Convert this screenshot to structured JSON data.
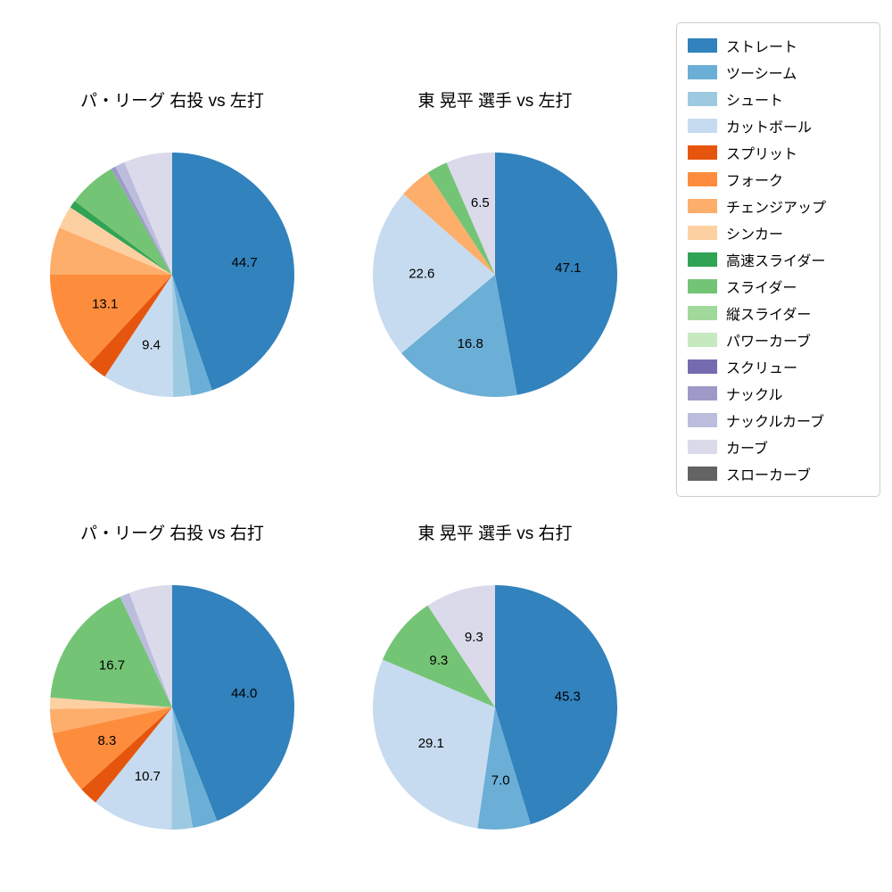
{
  "page": {
    "background": "#ffffff"
  },
  "legend": {
    "items": [
      {
        "label": "ストレート",
        "color": "#3182bd"
      },
      {
        "label": "ツーシーム",
        "color": "#6baed6"
      },
      {
        "label": "シュート",
        "color": "#9ecae1"
      },
      {
        "label": "カットボール",
        "color": "#c6dbef"
      },
      {
        "label": "スプリット",
        "color": "#e6550d"
      },
      {
        "label": "フォーク",
        "color": "#fd8d3c"
      },
      {
        "label": "チェンジアップ",
        "color": "#fdae6b"
      },
      {
        "label": "シンカー",
        "color": "#fdd0a2"
      },
      {
        "label": "高速スライダー",
        "color": "#31a354"
      },
      {
        "label": "スライダー",
        "color": "#74c476"
      },
      {
        "label": "縦スライダー",
        "color": "#a1d99b"
      },
      {
        "label": "パワーカーブ",
        "color": "#c7e9c0"
      },
      {
        "label": "スクリュー",
        "color": "#756bb1"
      },
      {
        "label": "ナックル",
        "color": "#9e9ac8"
      },
      {
        "label": "ナックルカーブ",
        "color": "#bcbddc"
      },
      {
        "label": "カーブ",
        "color": "#dadaeb"
      },
      {
        "label": "スローカーブ",
        "color": "#636363"
      }
    ]
  },
  "chart_data": [
    {
      "type": "pie",
      "title": "パ・リーグ 右投 vs 左打",
      "start_angle_deg": 90,
      "direction": "clockwise",
      "units": "percent",
      "slices": [
        {
          "name": "ストレート",
          "value": 44.7,
          "color": "#3182bd",
          "label": "44.7"
        },
        {
          "name": "ツーシーム",
          "value": 2.8,
          "color": "#6baed6",
          "label": ""
        },
        {
          "name": "シュート",
          "value": 2.4,
          "color": "#9ecae1",
          "label": ""
        },
        {
          "name": "カットボール",
          "value": 9.4,
          "color": "#c6dbef",
          "label": "9.4"
        },
        {
          "name": "スプリット",
          "value": 2.6,
          "color": "#e6550d",
          "label": ""
        },
        {
          "name": "フォーク",
          "value": 13.1,
          "color": "#fd8d3c",
          "label": "13.1"
        },
        {
          "name": "チェンジアップ",
          "value": 6.3,
          "color": "#fdae6b",
          "label": ""
        },
        {
          "name": "シンカー",
          "value": 3.0,
          "color": "#fdd0a2",
          "label": ""
        },
        {
          "name": "高速スライダー",
          "value": 1.0,
          "color": "#31a354",
          "label": ""
        },
        {
          "name": "スライダー",
          "value": 6.4,
          "color": "#74c476",
          "label": ""
        },
        {
          "name": "ナックル",
          "value": 0.6,
          "color": "#9e9ac8",
          "label": ""
        },
        {
          "name": "ナックルカーブ",
          "value": 1.3,
          "color": "#bcbddc",
          "label": ""
        },
        {
          "name": "カーブ",
          "value": 6.4,
          "color": "#dadaeb",
          "label": ""
        }
      ]
    },
    {
      "type": "pie",
      "title": "東 晃平 選手 vs 左打",
      "start_angle_deg": 90,
      "direction": "clockwise",
      "units": "percent",
      "slices": [
        {
          "name": "ストレート",
          "value": 47.1,
          "color": "#3182bd",
          "label": "47.1"
        },
        {
          "name": "ツーシーム",
          "value": 16.8,
          "color": "#6baed6",
          "label": "16.8"
        },
        {
          "name": "カットボール",
          "value": 22.6,
          "color": "#c6dbef",
          "label": "22.6"
        },
        {
          "name": "チェンジアップ",
          "value": 4.2,
          "color": "#fdae6b",
          "label": ""
        },
        {
          "name": "スライダー",
          "value": 2.8,
          "color": "#74c476",
          "label": ""
        },
        {
          "name": "カーブ",
          "value": 6.5,
          "color": "#dadaeb",
          "label": "6.5"
        }
      ]
    },
    {
      "type": "pie",
      "title": "パ・リーグ 右投 vs 右打",
      "start_angle_deg": 90,
      "direction": "clockwise",
      "units": "percent",
      "slices": [
        {
          "name": "ストレート",
          "value": 44.0,
          "color": "#3182bd",
          "label": "44.0"
        },
        {
          "name": "ツーシーム",
          "value": 3.3,
          "color": "#6baed6",
          "label": ""
        },
        {
          "name": "シュート",
          "value": 2.8,
          "color": "#9ecae1",
          "label": ""
        },
        {
          "name": "カットボール",
          "value": 10.7,
          "color": "#c6dbef",
          "label": "10.7"
        },
        {
          "name": "スプリット",
          "value": 2.5,
          "color": "#e6550d",
          "label": ""
        },
        {
          "name": "フォーク",
          "value": 8.3,
          "color": "#fd8d3c",
          "label": "8.3"
        },
        {
          "name": "チェンジアップ",
          "value": 3.2,
          "color": "#fdae6b",
          "label": ""
        },
        {
          "name": "シンカー",
          "value": 1.5,
          "color": "#fdd0a2",
          "label": ""
        },
        {
          "name": "スライダー",
          "value": 16.7,
          "color": "#74c476",
          "label": "16.7"
        },
        {
          "name": "ナックルカーブ",
          "value": 1.3,
          "color": "#bcbddc",
          "label": ""
        },
        {
          "name": "カーブ",
          "value": 5.7,
          "color": "#dadaeb",
          "label": ""
        }
      ]
    },
    {
      "type": "pie",
      "title": "東 晃平 選手 vs 右打",
      "start_angle_deg": 90,
      "direction": "clockwise",
      "units": "percent",
      "slices": [
        {
          "name": "ストレート",
          "value": 45.3,
          "color": "#3182bd",
          "label": "45.3"
        },
        {
          "name": "ツーシーム",
          "value": 7.0,
          "color": "#6baed6",
          "label": "7.0"
        },
        {
          "name": "カットボール",
          "value": 29.1,
          "color": "#c6dbef",
          "label": "29.1"
        },
        {
          "name": "スライダー",
          "value": 9.3,
          "color": "#74c476",
          "label": "9.3"
        },
        {
          "name": "カーブ",
          "value": 9.3,
          "color": "#dadaeb",
          "label": "9.3"
        }
      ]
    }
  ]
}
